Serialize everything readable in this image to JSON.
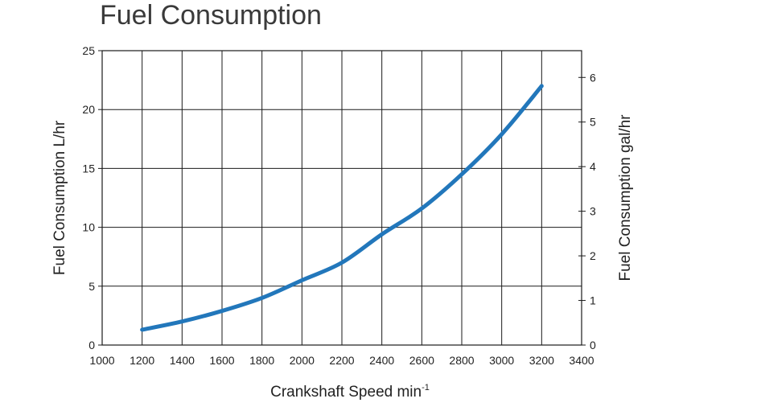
{
  "chart_data": {
    "type": "line",
    "title": "Fuel Consumption",
    "xlabel": "Crankshaft Speed min",
    "xlabel_superscript": "-1",
    "ylabel": "Fuel Consumption L/hr",
    "y2label": "Fuel Consumption gal/hr",
    "xlim": [
      1000,
      3400
    ],
    "ylim": [
      0,
      25
    ],
    "y2lim": [
      0,
      6.6
    ],
    "x_ticks": [
      1000,
      1200,
      1400,
      1600,
      1800,
      2000,
      2200,
      2400,
      2600,
      2800,
      3000,
      3200,
      3400
    ],
    "y_ticks": [
      0,
      5,
      10,
      15,
      20,
      25
    ],
    "y2_ticks": [
      0,
      1,
      2,
      3,
      4,
      5,
      6
    ],
    "grid": true,
    "series": [
      {
        "name": "Fuel Consumption",
        "color": "#2277bb",
        "x": [
          1200,
          1400,
          1600,
          1800,
          2000,
          2200,
          2400,
          2600,
          2800,
          3000,
          3200
        ],
        "y": [
          1.3,
          2.0,
          2.9,
          4.0,
          5.5,
          7.0,
          9.4,
          11.6,
          14.5,
          17.9,
          22.0
        ]
      }
    ]
  }
}
